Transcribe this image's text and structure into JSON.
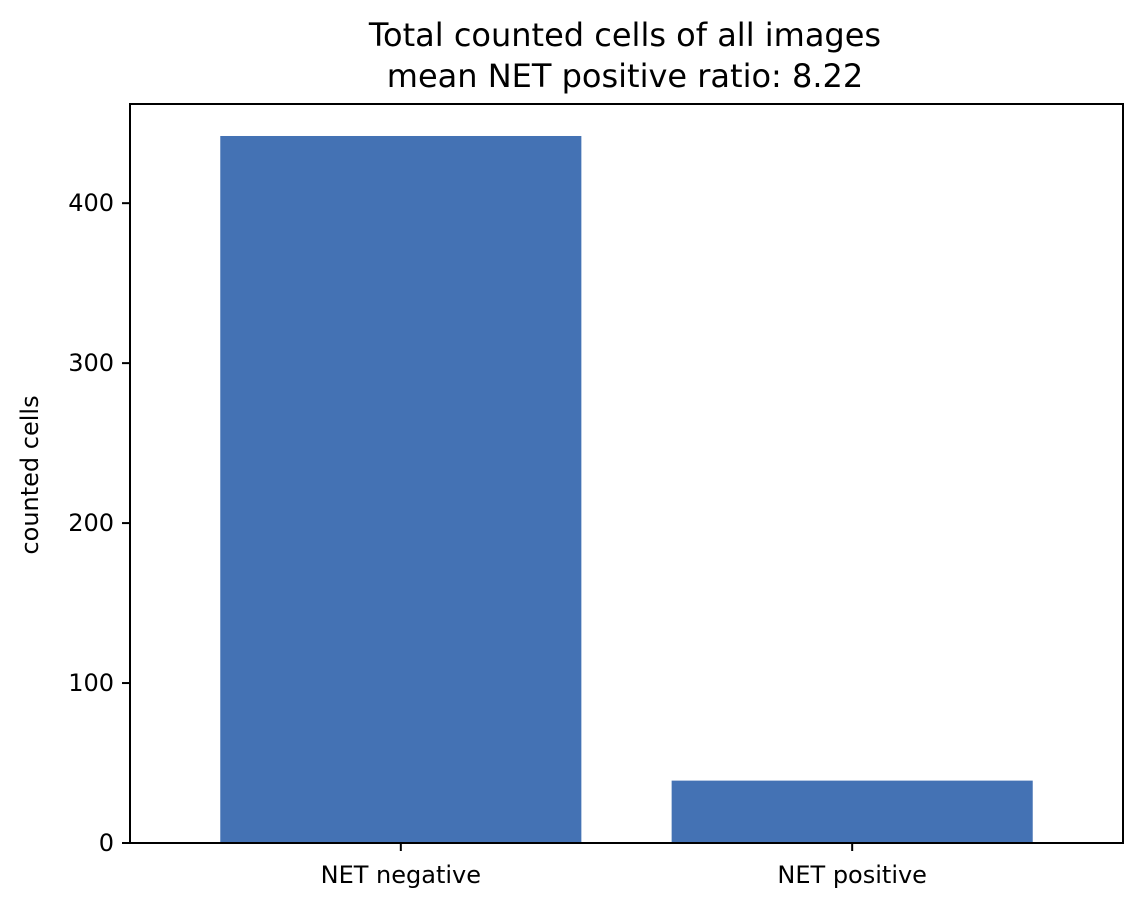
{
  "chart_data": {
    "type": "bar",
    "title": "Total counted cells of all images",
    "subtitle": "mean NET positive ratio: 8.22",
    "xlabel": "",
    "ylabel": "counted cells",
    "categories": [
      "NET negative",
      "NET positive"
    ],
    "values": [
      442,
      39
    ],
    "ylim": [
      0,
      462
    ],
    "yticks": [
      0,
      100,
      200,
      300,
      400
    ],
    "bar_color": "#4472b4",
    "grid": false,
    "legend": "none"
  }
}
